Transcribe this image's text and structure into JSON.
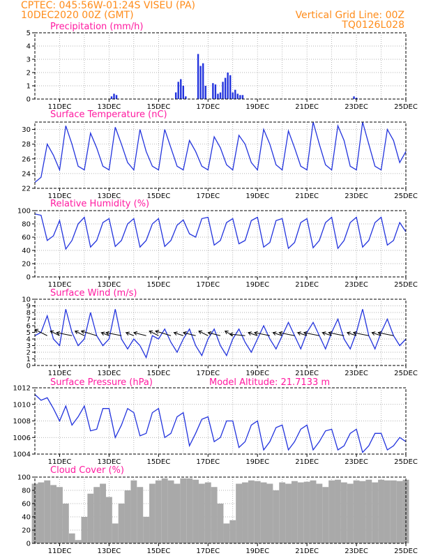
{
  "header": {
    "station": "CPTEC:   045:56W-01:24S   VISEU (PA)",
    "run": "10DEC2020 00Z (GMT)",
    "grid_note": "Vertical Grid Line: 00Z",
    "code": "TQ0126L028"
  },
  "colors": {
    "header": "#ff8c1a",
    "title": "#ff1aa0",
    "line": "#2233dd",
    "cloud": "#a9a9a9",
    "grid": "#999999"
  },
  "chart_data": [
    {
      "type": "bar",
      "title": "Precipitation (mm/h)",
      "ylim": [
        0,
        5
      ],
      "yticks": [
        "0",
        "1",
        "2",
        "3",
        "4",
        "5"
      ],
      "xtick_labels": [
        "11DEC",
        "13DEC",
        "15DEC",
        "17DEC",
        "19DEC",
        "21DEC",
        "23DEC",
        "25DEC"
      ],
      "x": [
        3.1,
        3.2,
        3.3,
        5.7,
        5.8,
        5.9,
        6.0,
        6.1,
        6.6,
        6.7,
        6.8,
        6.9,
        7.2,
        7.3,
        7.4,
        7.5,
        7.6,
        7.7,
        7.8,
        7.9,
        8.0,
        8.1,
        8.2,
        8.3,
        8.4,
        12.9,
        13.0
      ],
      "values": [
        0.2,
        0.4,
        0.3,
        0.5,
        1.3,
        1.5,
        1.0,
        0.2,
        3.4,
        2.5,
        2.7,
        1.0,
        1.2,
        1.1,
        0.4,
        0.5,
        1.3,
        1.6,
        2.0,
        1.8,
        0.5,
        0.7,
        0.4,
        0.3,
        0.3,
        0.2,
        0.1
      ]
    },
    {
      "type": "line",
      "title": "Surface Temperature (nC)",
      "ylim": [
        22,
        31
      ],
      "yticks": [
        "22",
        "24",
        "26",
        "28",
        "30"
      ],
      "xtick_labels": [
        "11DEC",
        "13DEC",
        "15DEC",
        "17DEC",
        "19DEC",
        "21DEC",
        "23DEC",
        "25DEC"
      ],
      "x": [
        0,
        0.25,
        0.5,
        0.75,
        1.0,
        1.25,
        1.5,
        1.75,
        2.0,
        2.25,
        2.5,
        2.75,
        3.0,
        3.25,
        3.5,
        3.75,
        4.0,
        4.25,
        4.5,
        4.75,
        5.0,
        5.25,
        5.5,
        5.75,
        6.0,
        6.25,
        6.5,
        6.75,
        7.0,
        7.25,
        7.5,
        7.75,
        8.0,
        8.25,
        8.5,
        8.75,
        9.0,
        9.25,
        9.5,
        9.75,
        10.0,
        10.25,
        10.5,
        10.75,
        11.0,
        11.25,
        11.5,
        11.75,
        12.0,
        12.25,
        12.5,
        12.75,
        13.0,
        13.25,
        13.5,
        13.75,
        14.0,
        14.25,
        14.5,
        14.75,
        15.0
      ],
      "values": [
        22.8,
        23.5,
        28.0,
        26.5,
        24.5,
        30.5,
        28.0,
        25.0,
        24.5,
        29.5,
        27.5,
        25.0,
        24.5,
        30.3,
        28.0,
        25.5,
        24.5,
        30.0,
        27.0,
        25.0,
        24.5,
        30.0,
        27.5,
        25.0,
        24.5,
        28.5,
        27.0,
        25.0,
        24.5,
        29.0,
        27.5,
        25.2,
        24.5,
        29.2,
        28.0,
        25.5,
        24.5,
        30.0,
        28.0,
        25.2,
        24.5,
        29.8,
        27.5,
        25.0,
        24.5,
        31.0,
        28.0,
        25.2,
        24.5,
        30.5,
        28.5,
        25.0,
        24.5,
        31.0,
        28.0,
        25.0,
        24.5,
        30.0,
        28.5,
        25.5,
        27.0
      ]
    },
    {
      "type": "line",
      "title": "Relative Humidity (%)",
      "ylim": [
        0,
        100
      ],
      "yticks": [
        "0",
        "20",
        "40",
        "60",
        "80",
        "100"
      ],
      "xtick_labels": [
        "11DEC",
        "13DEC",
        "15DEC",
        "17DEC",
        "19DEC",
        "21DEC",
        "23DEC",
        "25DEC"
      ],
      "x": [
        0,
        0.25,
        0.5,
        0.75,
        1.0,
        1.25,
        1.5,
        1.75,
        2.0,
        2.25,
        2.5,
        2.75,
        3.0,
        3.25,
        3.5,
        3.75,
        4.0,
        4.25,
        4.5,
        4.75,
        5.0,
        5.25,
        5.5,
        5.75,
        6.0,
        6.25,
        6.5,
        6.75,
        7.0,
        7.25,
        7.5,
        7.75,
        8.0,
        8.25,
        8.5,
        8.75,
        9.0,
        9.25,
        9.5,
        9.75,
        10.0,
        10.25,
        10.5,
        10.75,
        11.0,
        11.25,
        11.5,
        11.75,
        12.0,
        12.25,
        12.5,
        12.75,
        13.0,
        13.25,
        13.5,
        13.75,
        14.0,
        14.25,
        14.5,
        14.75,
        15.0
      ],
      "values": [
        95,
        93,
        55,
        62,
        85,
        42,
        55,
        80,
        90,
        45,
        55,
        82,
        88,
        46,
        55,
        80,
        88,
        45,
        55,
        80,
        88,
        46,
        55,
        78,
        86,
        65,
        60,
        88,
        90,
        48,
        55,
        82,
        88,
        50,
        55,
        85,
        90,
        45,
        52,
        85,
        88,
        43,
        52,
        82,
        88,
        44,
        55,
        82,
        90,
        43,
        55,
        82,
        90,
        45,
        55,
        82,
        90,
        48,
        55,
        82,
        68
      ]
    },
    {
      "type": "line",
      "title": "Surface Wind (m/s)",
      "ylim": [
        0,
        10
      ],
      "yticks": [
        "0",
        "1",
        "2",
        "3",
        "4",
        "5",
        "6",
        "7",
        "8",
        "9",
        "10"
      ],
      "xtick_labels": [
        "11DEC",
        "13DEC",
        "15DEC",
        "17DEC",
        "19DEC",
        "21DEC",
        "23DEC",
        "25DEC"
      ],
      "x": [
        0,
        0.25,
        0.5,
        0.75,
        1.0,
        1.25,
        1.5,
        1.75,
        2.0,
        2.25,
        2.5,
        2.75,
        3.0,
        3.25,
        3.5,
        3.75,
        4.0,
        4.25,
        4.5,
        4.75,
        5.0,
        5.25,
        5.5,
        5.75,
        6.0,
        6.25,
        6.5,
        6.75,
        7.0,
        7.25,
        7.5,
        7.75,
        8.0,
        8.25,
        8.5,
        8.75,
        9.0,
        9.25,
        9.5,
        9.75,
        10.0,
        10.25,
        10.5,
        10.75,
        11.0,
        11.25,
        11.5,
        11.75,
        12.0,
        12.25,
        12.5,
        12.75,
        13.0,
        13.25,
        13.5,
        13.75,
        14.0,
        14.25,
        14.5,
        14.75,
        15.0
      ],
      "values": [
        4.5,
        5.0,
        7.5,
        4.0,
        3.0,
        8.5,
        5.0,
        3.0,
        4.0,
        8.0,
        4.5,
        3.0,
        4.0,
        8.5,
        4.0,
        2.5,
        4.0,
        3.0,
        1.2,
        4.5,
        4.0,
        5.5,
        3.5,
        2.0,
        4.0,
        5.5,
        3.0,
        1.5,
        4.0,
        5.5,
        3.0,
        1.5,
        4.0,
        5.5,
        3.5,
        2.0,
        4.0,
        6.0,
        4.0,
        2.5,
        4.5,
        6.5,
        4.5,
        2.5,
        5.0,
        6.5,
        4.5,
        2.5,
        5.0,
        7.0,
        4.0,
        2.5,
        5.0,
        8.5,
        4.5,
        2.5,
        5.0,
        7.0,
        4.5,
        3.0,
        4.0
      ],
      "vectors": {
        "x": [
          0.5,
          1.0,
          1.5,
          2.0,
          2.5,
          3.0,
          3.5,
          4.0,
          4.5,
          5.0,
          5.5,
          6.0,
          6.5,
          7.0,
          7.5,
          8.0,
          8.5,
          9.0,
          9.5,
          10.0,
          10.5,
          11.0,
          11.5,
          12.0,
          12.5,
          13.0,
          13.5,
          14.0,
          14.5
        ],
        "dx": [
          -8,
          -6,
          -10,
          -6,
          -10,
          -5,
          -10,
          -5,
          -8,
          -6,
          -10,
          -6,
          -8,
          -6,
          -8,
          -5,
          -10,
          -6,
          -10,
          -6,
          -10,
          -6,
          -10,
          -6,
          -10,
          -6,
          -10,
          -6,
          -10
        ],
        "dy": [
          -4,
          -3,
          -2,
          -3,
          -3,
          -2,
          -2,
          -2,
          -2,
          -3,
          -3,
          -2,
          -2,
          -3,
          -2,
          -3,
          -1,
          -2,
          -2,
          -2,
          -2,
          -2,
          -2,
          -2,
          -2,
          -2,
          -2,
          -2,
          -2
        ]
      }
    },
    {
      "type": "line",
      "title": "Surface Pressure (hPa)",
      "subtitle": "Model Altitude: 21.7133 m",
      "ylim": [
        1004,
        1012
      ],
      "yticks": [
        "1004",
        "1006",
        "1008",
        "1010",
        "1012"
      ],
      "xtick_labels": [
        "11DEC",
        "13DEC",
        "15DEC",
        "17DEC",
        "19DEC",
        "21DEC",
        "23DEC",
        "25DEC"
      ],
      "x": [
        0,
        0.25,
        0.5,
        0.75,
        1.0,
        1.25,
        1.5,
        1.75,
        2.0,
        2.25,
        2.5,
        2.75,
        3.0,
        3.25,
        3.5,
        3.75,
        4.0,
        4.25,
        4.5,
        4.75,
        5.0,
        5.25,
        5.5,
        5.75,
        6.0,
        6.25,
        6.5,
        6.75,
        7.0,
        7.25,
        7.5,
        7.75,
        8.0,
        8.25,
        8.5,
        8.75,
        9.0,
        9.25,
        9.5,
        9.75,
        10.0,
        10.25,
        10.5,
        10.75,
        11.0,
        11.25,
        11.5,
        11.75,
        12.0,
        12.25,
        12.5,
        12.75,
        13.0,
        13.25,
        13.5,
        13.75,
        14.0,
        14.25,
        14.5,
        14.75,
        15.0
      ],
      "values": [
        1011.2,
        1010.5,
        1010.8,
        1009.5,
        1008.0,
        1009.8,
        1007.5,
        1008.5,
        1009.8,
        1006.8,
        1007.0,
        1009.5,
        1009.5,
        1006.0,
        1007.5,
        1009.5,
        1009.0,
        1006.2,
        1006.5,
        1009.0,
        1009.5,
        1006.0,
        1006.5,
        1008.5,
        1009.0,
        1005.0,
        1006.5,
        1008.2,
        1008.5,
        1005.5,
        1006.0,
        1008.0,
        1008.0,
        1004.8,
        1005.5,
        1007.5,
        1008.0,
        1004.5,
        1005.5,
        1007.2,
        1007.5,
        1004.5,
        1005.5,
        1007.0,
        1007.5,
        1004.5,
        1005.5,
        1006.8,
        1007.0,
        1004.5,
        1005.0,
        1006.5,
        1007.0,
        1004.2,
        1005.0,
        1006.5,
        1006.5,
        1004.5,
        1005.0,
        1006.0,
        1005.5
      ]
    },
    {
      "type": "area",
      "title": "Cloud Cover (%)",
      "ylim": [
        0,
        100
      ],
      "yticks": [
        "0",
        "20",
        "40",
        "60",
        "80",
        "100"
      ],
      "xtick_labels": [
        "11DEC",
        "13DEC",
        "15DEC",
        "17DEC",
        "19DEC",
        "21DEC",
        "23DEC",
        "25DEC"
      ],
      "x": [
        0,
        0.25,
        0.5,
        0.75,
        1.0,
        1.25,
        1.5,
        1.75,
        2.0,
        2.25,
        2.5,
        2.75,
        3.0,
        3.25,
        3.5,
        3.75,
        4.0,
        4.25,
        4.5,
        4.75,
        5.0,
        5.25,
        5.5,
        5.75,
        6.0,
        6.25,
        6.5,
        6.75,
        7.0,
        7.25,
        7.5,
        7.75,
        8.0,
        8.25,
        8.5,
        8.75,
        9.0,
        9.25,
        9.5,
        9.75,
        10.0,
        10.25,
        10.5,
        10.75,
        11.0,
        11.25,
        11.5,
        11.75,
        12.0,
        12.25,
        12.5,
        12.75,
        13.0,
        13.25,
        13.5,
        13.75,
        14.0,
        14.25,
        14.5,
        14.75,
        15.0
      ],
      "values": [
        90,
        92,
        95,
        88,
        85,
        60,
        15,
        5,
        40,
        75,
        85,
        90,
        70,
        30,
        60,
        80,
        95,
        85,
        40,
        90,
        95,
        98,
        95,
        90,
        98,
        98,
        96,
        90,
        92,
        85,
        60,
        30,
        35,
        90,
        92,
        95,
        94,
        92,
        90,
        80,
        92,
        90,
        94,
        92,
        93,
        95,
        90,
        85,
        95,
        96,
        92,
        90,
        95,
        94,
        96,
        92,
        96,
        95,
        95,
        94,
        96
      ]
    }
  ]
}
